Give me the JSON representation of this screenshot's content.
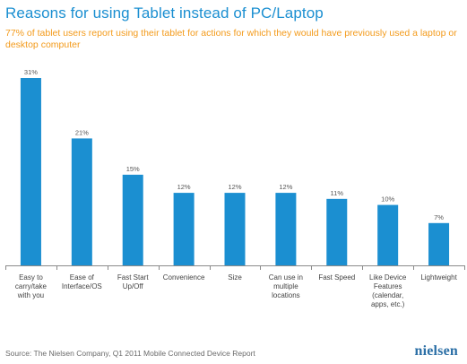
{
  "header": {
    "title": "Reasons for using Tablet instead of PC/Laptop",
    "subtitle": "77% of tablet users report using their tablet for actions for which they would have previously used a laptop or desktop computer"
  },
  "footer": {
    "source": "Source: The Nielsen Company, Q1 2011 Mobile Connected Device Report",
    "logo": "nielsen"
  },
  "colors": {
    "bar": "#1b8fd1",
    "title": "#1b8fd1",
    "subtitle": "#f39a1a"
  },
  "chart_data": {
    "type": "bar",
    "categories": [
      "Easy to carry/take with you",
      "Ease of Interface/OS",
      "Fast Start Up/Off",
      "Convenience",
      "Size",
      "Can use in multiple locations",
      "Fast Speed",
      "Like Device Features (calendar, apps, etc.)",
      "Lightweight"
    ],
    "category_lines": [
      [
        "Easy to",
        "carry/take",
        "with you"
      ],
      [
        "Ease of",
        "Interface/OS"
      ],
      [
        "Fast Start",
        "Up/Off"
      ],
      [
        "Convenience"
      ],
      [
        "Size"
      ],
      [
        "Can use in",
        "multiple",
        "locations"
      ],
      [
        "Fast Speed"
      ],
      [
        "Like Device",
        "Features",
        "(calendar,",
        "apps, etc.)"
      ],
      [
        "Lightweight"
      ]
    ],
    "values": [
      31,
      21,
      15,
      12,
      12,
      12,
      11,
      10,
      7
    ],
    "data_labels": [
      "31%",
      "21%",
      "15%",
      "12%",
      "12%",
      "12%",
      "11%",
      "10%",
      "7%"
    ],
    "ylim": [
      0,
      31
    ],
    "grid": false,
    "legend": "none"
  }
}
